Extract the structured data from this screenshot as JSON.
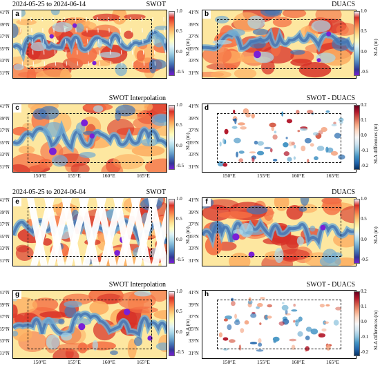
{
  "panels": [
    {
      "id": "a",
      "letter": "a",
      "title_left": "2024-05-25 to 2024-06-14",
      "title_right": "SWOT",
      "kind": "sla",
      "swath": false,
      "tracks": "sparse"
    },
    {
      "id": "b",
      "letter": "b",
      "title_left": "",
      "title_right": "DUACS",
      "kind": "sla",
      "swath": false,
      "tracks": "none"
    },
    {
      "id": "c",
      "letter": "c",
      "title_left": "",
      "title_right": "SWOT Interpolation",
      "kind": "sla",
      "swath": false,
      "tracks": "none"
    },
    {
      "id": "d",
      "letter": "d",
      "title_left": "",
      "title_right": "SWOT - DUACS",
      "kind": "diff",
      "swath": false,
      "tracks": "none"
    },
    {
      "id": "e",
      "letter": "e",
      "title_left": "2024-05-25 to 2024-06-04",
      "title_right": "SWOT",
      "kind": "sla",
      "swath": true,
      "tracks": "swath"
    },
    {
      "id": "f",
      "letter": "f",
      "title_left": "",
      "title_right": "DUACS",
      "kind": "sla",
      "swath": false,
      "tracks": "none"
    },
    {
      "id": "g",
      "letter": "g",
      "title_left": "",
      "title_right": "SWOT Interpolation",
      "kind": "sla",
      "swath": false,
      "tracks": "none"
    },
    {
      "id": "h",
      "letter": "h",
      "title_left": "",
      "title_right": "SWOT - DUACS",
      "kind": "diff",
      "swath": false,
      "tracks": "none"
    }
  ],
  "lat_ticks": [
    "41°N",
    "39°N",
    "37°N",
    "35°N",
    "33°N",
    "31°N"
  ],
  "lon_ticks": [
    "150°E",
    "155°E",
    "160°E",
    "165°E"
  ],
  "colorbar_sla": {
    "label": "SLA (m)",
    "ticks": [
      "1.0",
      "0.5",
      "0.0",
      "-0.5"
    ]
  },
  "colorbar_diff": {
    "label": "SLA differences (m)",
    "ticks": [
      "0.2",
      "0.1",
      "0.0",
      "-0.1",
      "-0.2"
    ]
  },
  "colors": {
    "sla_stops": [
      "#f3f0fb",
      "#d73027",
      "#f46d43",
      "#fdae61",
      "#fee090",
      "#ffffbf",
      "#e0f3f8",
      "#abd9e9",
      "#74add1",
      "#4575b4",
      "#313695",
      "#7a1fd6"
    ],
    "diff_stops": [
      "#67001f",
      "#b2182b",
      "#d6604d",
      "#f4a582",
      "#fddbc7",
      "#f7f7f7",
      "#d1e5f0",
      "#92c5de",
      "#4393c3",
      "#2166ac",
      "#053061"
    ]
  }
}
